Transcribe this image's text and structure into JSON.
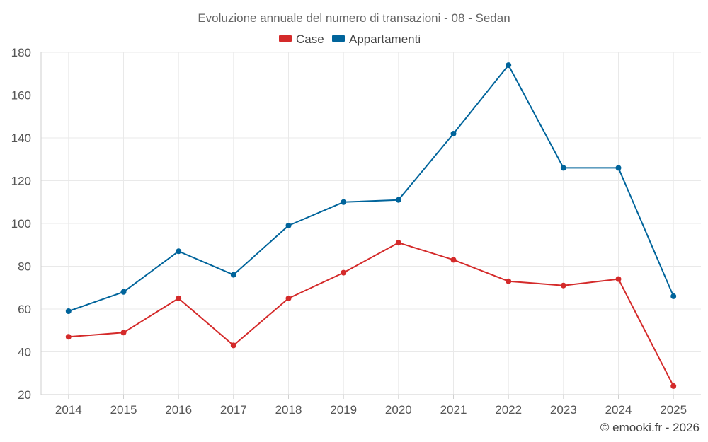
{
  "chart_data": {
    "type": "line",
    "title": "Evoluzione annuale del numero di transazioni - 08 - Sedan",
    "xlabel": "",
    "ylabel": "",
    "categories": [
      "2014",
      "2015",
      "2016",
      "2017",
      "2018",
      "2019",
      "2020",
      "2021",
      "2022",
      "2023",
      "2024",
      "2025"
    ],
    "ylim": [
      20,
      180
    ],
    "yticks": [
      20,
      40,
      60,
      80,
      100,
      120,
      140,
      160,
      180
    ],
    "grid": true,
    "legend_position": "top-center",
    "series": [
      {
        "name": "Case",
        "color": "#d42a2a",
        "values": [
          47,
          49,
          65,
          43,
          65,
          77,
          91,
          83,
          73,
          71,
          74,
          24
        ]
      },
      {
        "name": "Appartamenti",
        "color": "#00649b",
        "values": [
          59,
          68,
          87,
          76,
          99,
          110,
          111,
          142,
          174,
          126,
          126,
          66
        ]
      }
    ]
  },
  "credit": "© emooki.fr - 2026"
}
